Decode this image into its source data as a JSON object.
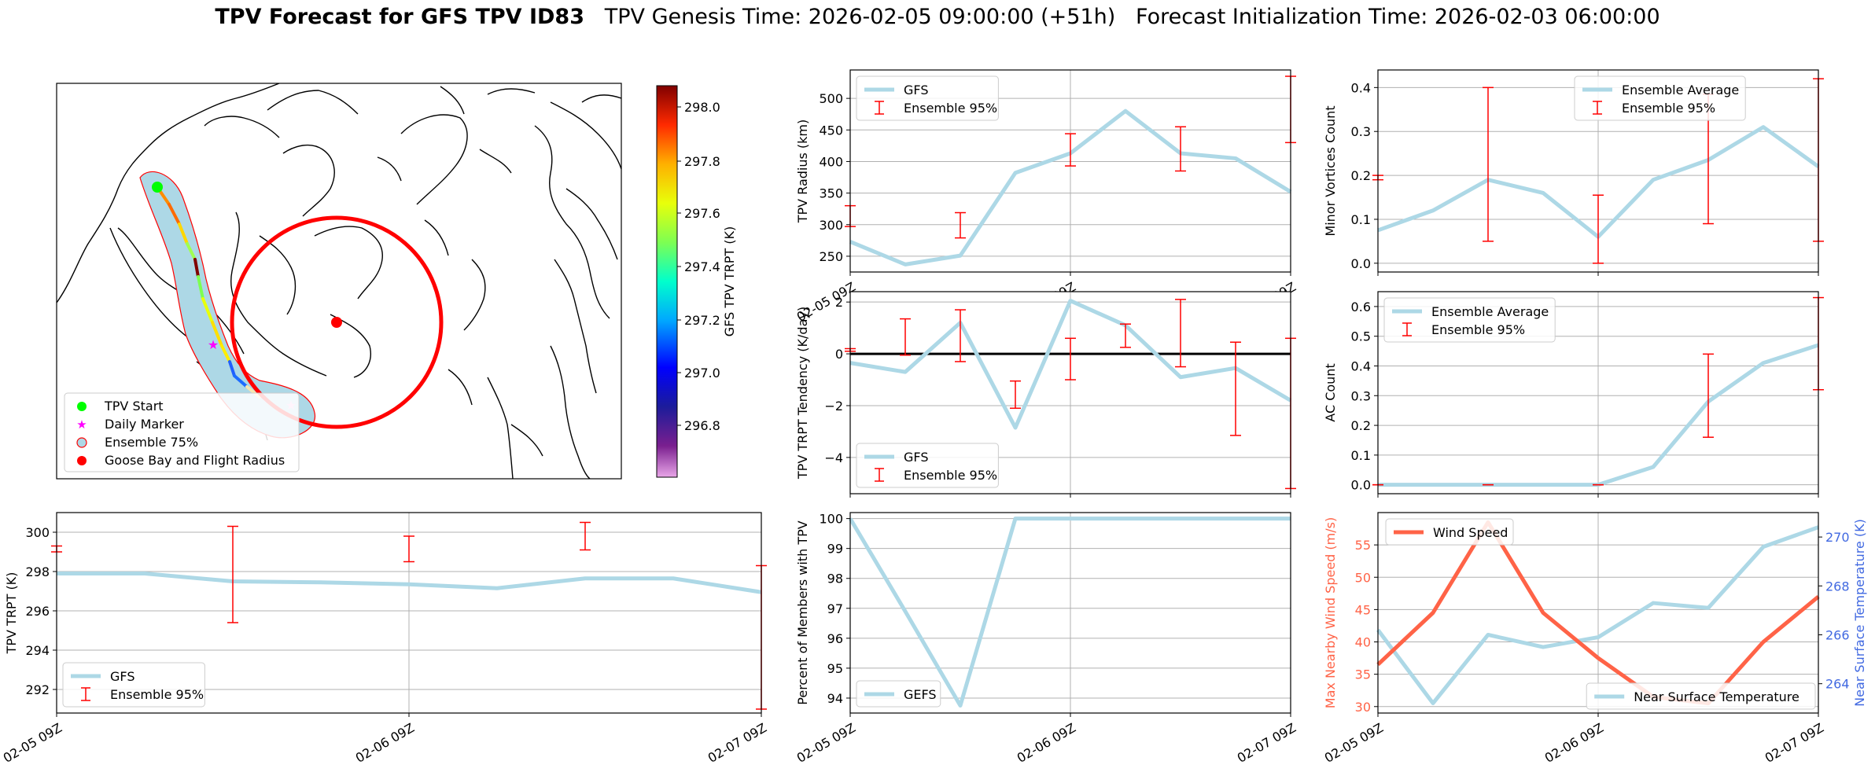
{
  "header": {
    "title_bold": "TPV Forecast for GFS TPV ID83",
    "title_rest": "TPV Genesis Time: 2026-02-05 09:00:00 (+51h)   Forecast Initialization Time: 2026-02-03 06:00:00"
  },
  "colorbar": {
    "label": "GFS TPV TRPT (K)",
    "ticks": [
      "298.0",
      "297.8",
      "297.6",
      "297.4",
      "297.2",
      "297.0",
      "296.8"
    ]
  },
  "map_legend": [
    "TPV Start",
    "Daily Marker",
    "Ensemble 75%",
    "Goose Bay and Flight Radius"
  ],
  "colors": {
    "gfs": "#add8e6",
    "ensemble": "#ff0000",
    "wind": "#ff6347",
    "temp_axis": "#4169e1",
    "map_start": "#00ff00",
    "daily_marker": "#ff00ff"
  },
  "chart_data": [
    {
      "id": "radius",
      "type": "line",
      "ylabel": "TPV Radius (km)",
      "ylim": [
        225,
        545
      ],
      "yticks": [
        250,
        300,
        350,
        400,
        450,
        500
      ],
      "xlim": [
        0,
        8
      ],
      "xtick_labels": [
        "02-05 09Z",
        "02-06 09Z",
        "02-07 09Z"
      ],
      "grid": true,
      "legend": "upper-left",
      "series": [
        {
          "name": "GFS",
          "x": [
            0,
            1,
            2,
            3,
            4,
            5,
            6,
            7,
            8
          ],
          "values": [
            273,
            237,
            251,
            382,
            413,
            480,
            413,
            405,
            352
          ]
        }
      ],
      "errorbars": {
        "name": "Ensemble 95%",
        "x": [
          0,
          2,
          4,
          6,
          8
        ],
        "low": [
          297,
          279,
          393,
          385,
          430
        ],
        "high": [
          330,
          319,
          444,
          455,
          535
        ]
      }
    },
    {
      "id": "minor",
      "type": "line",
      "ylabel": "Minor Vortices Count",
      "ylim": [
        -0.02,
        0.44
      ],
      "yticks": [
        "0.0",
        "0.1",
        "0.2",
        "0.3",
        "0.4"
      ],
      "xlim": [
        0,
        8
      ],
      "grid": true,
      "legend": "upper-center",
      "series": [
        {
          "name": "Ensemble Average",
          "x": [
            0,
            1,
            2,
            3,
            4,
            5,
            6,
            7,
            8
          ],
          "values": [
            0.075,
            0.12,
            0.19,
            0.16,
            0.06,
            0.19,
            0.235,
            0.31,
            0.22
          ]
        }
      ],
      "errorbars": {
        "name": "Ensemble 95%",
        "x": [
          0,
          2,
          4,
          6,
          8
        ],
        "low": [
          0.19,
          0.05,
          0.0,
          0.09,
          0.05
        ],
        "high": [
          0.2,
          0.4,
          0.155,
          0.385,
          0.42
        ]
      }
    },
    {
      "id": "tendency",
      "type": "line",
      "ylabel": "TPV TRPT Tendency (K/day)",
      "ylim": [
        -5.4,
        2.4
      ],
      "yticks": [
        "−4",
        "−2",
        "0",
        "2"
      ],
      "xlim": [
        0,
        8
      ],
      "grid": true,
      "legend": "lower-left",
      "zero_line": true,
      "series": [
        {
          "name": "GFS",
          "x": [
            0,
            1,
            2,
            3,
            4,
            5,
            6,
            7,
            8
          ],
          "values": [
            -0.35,
            -0.7,
            1.2,
            -2.85,
            2.05,
            1.1,
            -0.9,
            -0.55,
            -1.8
          ]
        }
      ],
      "errorbars": {
        "name": "Ensemble 95%",
        "x": [
          0,
          1,
          2,
          3,
          4,
          5,
          6,
          7,
          8
        ],
        "low": [
          0.1,
          -0.05,
          -0.3,
          -2.1,
          -1.0,
          0.25,
          -0.5,
          -3.15,
          -5.2
        ],
        "high": [
          0.2,
          1.35,
          1.7,
          -1.05,
          0.6,
          1.15,
          2.1,
          0.45,
          0.6
        ]
      }
    },
    {
      "id": "ac",
      "type": "line",
      "ylabel": "AC Count",
      "ylim": [
        -0.03,
        0.65
      ],
      "yticks": [
        "0.0",
        "0.1",
        "0.2",
        "0.3",
        "0.4",
        "0.5",
        "0.6"
      ],
      "xlim": [
        0,
        8
      ],
      "grid": true,
      "legend": "upper-left",
      "series": [
        {
          "name": "Ensemble Average",
          "x": [
            0,
            1,
            2,
            3,
            4,
            5,
            6,
            7,
            8
          ],
          "values": [
            0,
            0,
            0,
            0,
            0,
            0.06,
            0.28,
            0.41,
            0.47
          ]
        }
      ],
      "errorbars": {
        "name": "Ensemble 95%",
        "x": [
          0,
          2,
          4,
          6,
          8
        ],
        "low": [
          0,
          0,
          0,
          0.16,
          0.32
        ],
        "high": [
          0,
          0,
          0,
          0.44,
          0.63
        ]
      }
    },
    {
      "id": "trpt",
      "type": "line",
      "ylabel": "TPV TRPT (K)",
      "ylim": [
        290.8,
        301
      ],
      "yticks": [
        292,
        294,
        296,
        298,
        300
      ],
      "xlim": [
        0,
        8
      ],
      "xtick_labels": [
        "02-05 09Z",
        "02-06 09Z",
        "02-07 09Z"
      ],
      "grid": true,
      "legend": "lower-left",
      "series": [
        {
          "name": "GFS",
          "x": [
            0,
            1,
            2,
            3,
            4,
            5,
            6,
            7,
            8
          ],
          "values": [
            297.9,
            297.9,
            297.5,
            297.45,
            297.35,
            297.15,
            297.65,
            297.65,
            296.95
          ]
        }
      ],
      "errorbars": {
        "name": "Ensemble 95%",
        "x": [
          0,
          2,
          4,
          6,
          8
        ],
        "low": [
          299.0,
          295.4,
          298.5,
          299.1,
          291.0
        ],
        "high": [
          299.3,
          300.3,
          299.8,
          300.5,
          298.3
        ]
      }
    },
    {
      "id": "members",
      "type": "line",
      "ylabel": "Percent of Members with TPV",
      "ylim": [
        93.5,
        100.2
      ],
      "yticks": [
        94,
        95,
        96,
        97,
        98,
        99,
        100
      ],
      "xlim": [
        0,
        8
      ],
      "xtick_labels": [
        "02-05 09Z",
        "02-06 09Z",
        "02-07 09Z"
      ],
      "grid": true,
      "legend": "lower-left",
      "series": [
        {
          "name": "GEFS",
          "x": [
            0,
            1,
            2,
            3,
            4,
            5,
            6,
            7,
            8
          ],
          "values": [
            100,
            96.9,
            93.75,
            100,
            100,
            100,
            100,
            100,
            100
          ]
        }
      ]
    },
    {
      "id": "surface",
      "type": "line",
      "ylabel": "Max Nearby Wind Speed (m/s)",
      "ylim": [
        29,
        60
      ],
      "yticks": [
        30,
        35,
        40,
        45,
        50,
        55
      ],
      "ylabel_right": "Near Surface Temperature (K)",
      "ylim_right": [
        262.8,
        271
      ],
      "yticks_right": [
        264,
        266,
        268,
        270
      ],
      "xlim": [
        0,
        8
      ],
      "xtick_labels": [
        "02-05 09Z",
        "02-06 09Z",
        "02-07 09Z"
      ],
      "grid": true,
      "series": [
        {
          "name": "Wind Speed",
          "axis": "left",
          "x": [
            0,
            1,
            2,
            3,
            4,
            5,
            6,
            7,
            8
          ],
          "values": [
            36.5,
            44.5,
            58.5,
            44.5,
            37.5,
            31.5,
            30.5,
            40,
            47
          ]
        },
        {
          "name": "Near Surface Temperature",
          "axis": "right",
          "x": [
            0,
            1,
            2,
            3,
            4,
            5,
            6,
            7,
            8
          ],
          "values": [
            266.2,
            263.2,
            266.0,
            265.5,
            265.9,
            267.3,
            267.1,
            269.6,
            270.4
          ]
        }
      ]
    }
  ]
}
